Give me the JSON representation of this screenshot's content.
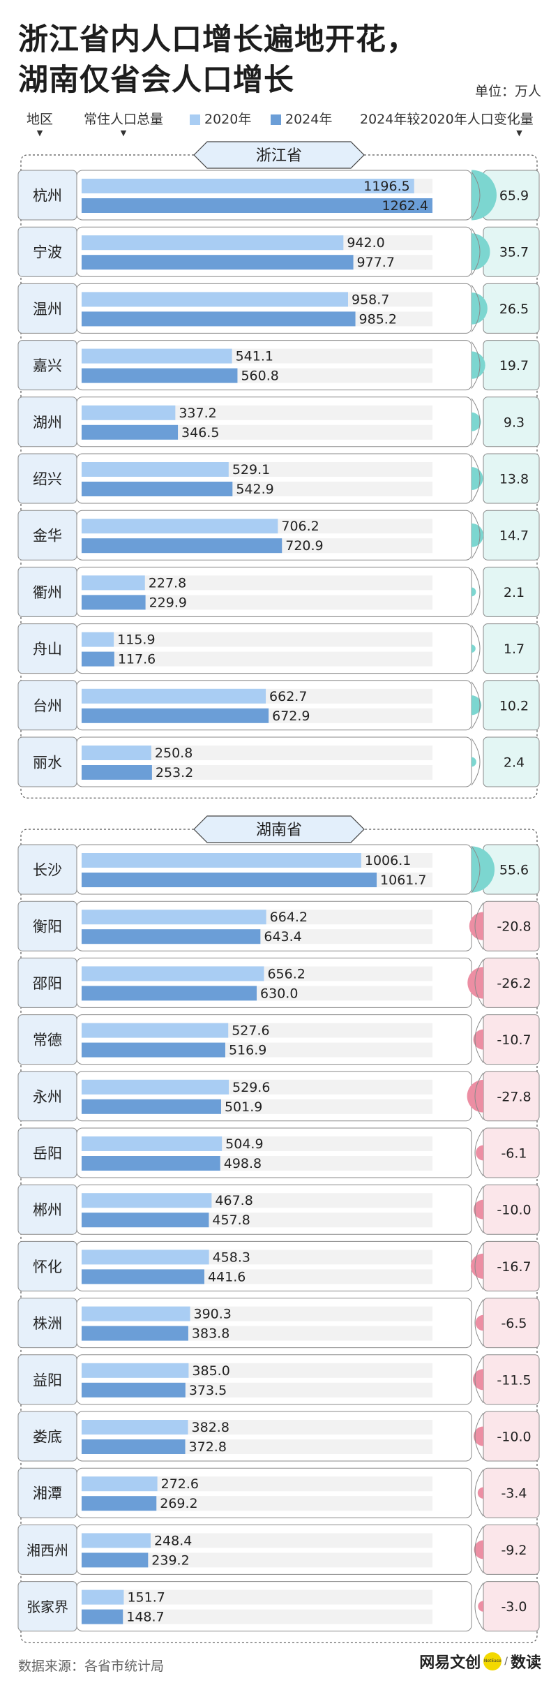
{
  "title": {
    "line1": "浙江省内人口增长遍地开花，",
    "line2": "湖南仅省会人口增长"
  },
  "unit": "单位：万人",
  "header": {
    "region": "地区",
    "total": "常住人口总量",
    "legend_2020": "2020年",
    "legend_2024": "2024年",
    "change": "2024年较2020年人口变化量"
  },
  "colors": {
    "bar_2020": "#a9cdf3",
    "bar_2024": "#6b9ed7",
    "positive": "#7cd6d0",
    "negative": "#ec8ea3",
    "positive_bg": "#e3f6f4",
    "negative_bg": "#fbe6ea",
    "city_bg": "#e6f0fa",
    "track": "#f2f2f2"
  },
  "chart_data": {
    "type": "bar",
    "series_names": [
      "2020年",
      "2024年"
    ],
    "groups": [
      {
        "province": "浙江省",
        "rows": [
          {
            "city": "杭州",
            "v2020": 1196.5,
            "v2024": 1262.4,
            "change": "65.9"
          },
          {
            "city": "宁波",
            "v2020": 942.0,
            "v2024": 977.7,
            "change": "35.7"
          },
          {
            "city": "温州",
            "v2020": 958.7,
            "v2024": 985.2,
            "change": "26.5"
          },
          {
            "city": "嘉兴",
            "v2020": 541.1,
            "v2024": 560.8,
            "change": "19.7"
          },
          {
            "city": "湖州",
            "v2020": 337.2,
            "v2024": 346.5,
            "change": "9.3"
          },
          {
            "city": "绍兴",
            "v2020": 529.1,
            "v2024": 542.9,
            "change": "13.8"
          },
          {
            "city": "金华",
            "v2020": 706.2,
            "v2024": 720.9,
            "change": "14.7"
          },
          {
            "city": "衢州",
            "v2020": 227.8,
            "v2024": 229.9,
            "change": "2.1"
          },
          {
            "city": "舟山",
            "v2020": 115.9,
            "v2024": 117.6,
            "change": "1.7"
          },
          {
            "city": "台州",
            "v2020": 662.7,
            "v2024": 672.9,
            "change": "10.2"
          },
          {
            "city": "丽水",
            "v2020": 250.8,
            "v2024": 253.2,
            "change": "2.4"
          }
        ]
      },
      {
        "province": "湖南省",
        "rows": [
          {
            "city": "长沙",
            "v2020": 1006.1,
            "v2024": 1061.7,
            "change": "55.6"
          },
          {
            "city": "衡阳",
            "v2020": 664.2,
            "v2024": 643.4,
            "change": "-20.8"
          },
          {
            "city": "邵阳",
            "v2020": 656.2,
            "v2024": 630.0,
            "change": "-26.2"
          },
          {
            "city": "常德",
            "v2020": 527.6,
            "v2024": 516.9,
            "change": "-10.7"
          },
          {
            "city": "永州",
            "v2020": 529.6,
            "v2024": 501.9,
            "change": "-27.8"
          },
          {
            "city": "岳阳",
            "v2020": 504.9,
            "v2024": 498.8,
            "change": "-6.1"
          },
          {
            "city": "郴州",
            "v2020": 467.8,
            "v2024": 457.8,
            "change": "-10.0"
          },
          {
            "city": "怀化",
            "v2020": 458.3,
            "v2024": 441.6,
            "change": "-16.7"
          },
          {
            "city": "株洲",
            "v2020": 390.3,
            "v2024": 383.8,
            "change": "-6.5"
          },
          {
            "city": "益阳",
            "v2020": 385.0,
            "v2024": 373.5,
            "change": "-11.5"
          },
          {
            "city": "娄底",
            "v2020": 382.8,
            "v2024": 372.8,
            "change": "-10.0"
          },
          {
            "city": "湘潭",
            "v2020": 272.6,
            "v2024": 269.2,
            "change": "-3.4"
          },
          {
            "city": "湘西州",
            "v2020": 248.4,
            "v2024": 239.2,
            "change": "-9.2"
          },
          {
            "city": "张家界",
            "v2020": 151.7,
            "v2024": 148.7,
            "change": "-3.0"
          }
        ]
      }
    ]
  },
  "footer": {
    "source": "数据来源：各省市统计局",
    "brand": "网易文创",
    "brand_badge": "NetEase",
    "brand_sep": "/",
    "brand_sub": "数读"
  }
}
